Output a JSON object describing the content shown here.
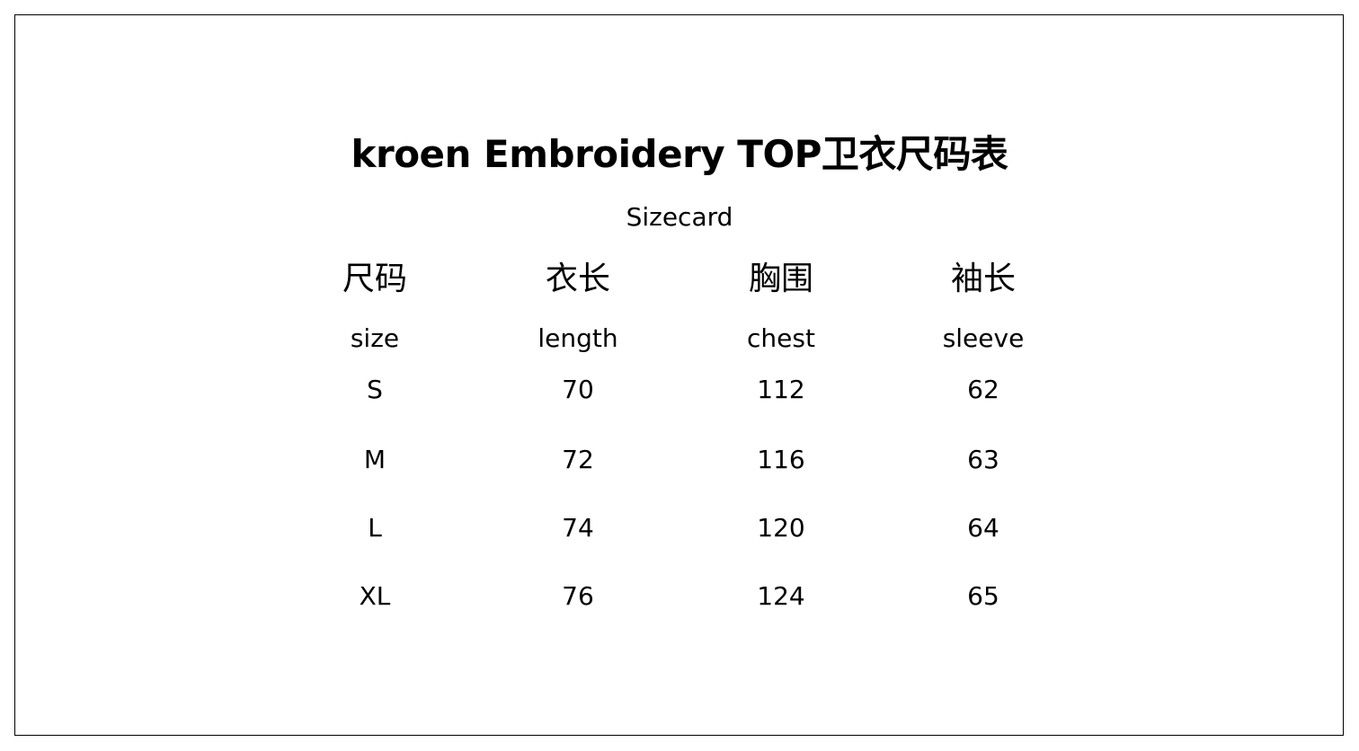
{
  "title": "kroen Embroidery TOP卫衣尺码表",
  "subtitle": "Sizecard",
  "columns": [
    {
      "zh": "尺码",
      "en": "size"
    },
    {
      "zh": "衣长",
      "en": "length"
    },
    {
      "zh": "胸围",
      "en": "chest"
    },
    {
      "zh": "袖长",
      "en": "sleeve"
    }
  ],
  "rows": [
    [
      "S",
      "70",
      "112",
      "62"
    ],
    [
      "M",
      "72",
      "116",
      "63"
    ],
    [
      "L",
      "74",
      "120",
      "64"
    ],
    [
      "XL",
      "76",
      "124",
      "65"
    ]
  ]
}
